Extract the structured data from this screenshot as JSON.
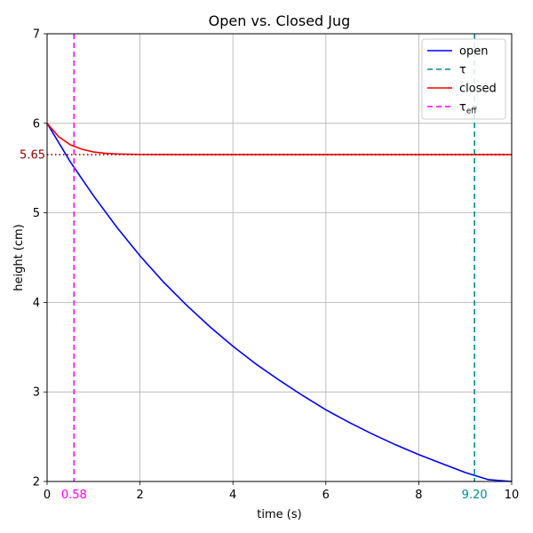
{
  "chart_data": {
    "type": "line",
    "title": "Open vs. Closed Jug",
    "xlabel": "time (s)",
    "ylabel": "height (cm)",
    "xlim": [
      0,
      10
    ],
    "ylim": [
      2,
      7
    ],
    "xticks": [
      "0",
      "2",
      "4",
      "6",
      "8",
      "10"
    ],
    "yticks": [
      "2",
      "3",
      "4",
      "5",
      "6",
      "7"
    ],
    "grid": true,
    "legend_position": "top-right",
    "series": [
      {
        "name": "open",
        "color": "#0000ff",
        "style": "solid",
        "x": [
          0,
          0.5,
          1,
          1.5,
          2,
          2.5,
          3,
          3.5,
          4,
          4.5,
          5,
          5.5,
          6,
          6.5,
          7,
          7.5,
          8,
          8.5,
          9,
          9.5,
          10
        ],
        "y": [
          6.0,
          5.57,
          5.19,
          4.84,
          4.52,
          4.23,
          3.97,
          3.73,
          3.51,
          3.31,
          3.13,
          2.96,
          2.8,
          2.66,
          2.53,
          2.41,
          2.3,
          2.2,
          2.1,
          2.02,
          1.94
        ]
      },
      {
        "name": "closed",
        "color": "#ff0000",
        "style": "solid",
        "x": [
          0,
          0.25,
          0.5,
          0.75,
          1,
          1.25,
          1.5,
          2,
          2.5,
          3,
          4,
          5,
          6,
          7,
          8,
          9,
          10
        ],
        "y": [
          6.0,
          5.85,
          5.76,
          5.71,
          5.68,
          5.665,
          5.658,
          5.652,
          5.651,
          5.65,
          5.65,
          5.65,
          5.65,
          5.65,
          5.65,
          5.65,
          5.65
        ]
      }
    ],
    "vlines": [
      {
        "name": "τ",
        "x": 9.2,
        "label": "9.20",
        "color": "#008b8b",
        "style": "dashed"
      },
      {
        "name": "τ_eff",
        "x": 0.58,
        "label": "0.58",
        "color": "#ff00ff",
        "style": "dashed"
      }
    ],
    "hline": {
      "y": 5.65,
      "label": "5.65",
      "color": "#8b0000",
      "style": "dotted"
    },
    "legend": [
      {
        "label": "open",
        "color": "#0000ff",
        "style": "solid"
      },
      {
        "label": "τ",
        "color": "#008b8b",
        "style": "dashed"
      },
      {
        "label": "closed",
        "color": "#ff0000",
        "style": "solid"
      },
      {
        "label": "τ",
        "sub": "eff",
        "color": "#ff00ff",
        "style": "dashed"
      }
    ]
  }
}
